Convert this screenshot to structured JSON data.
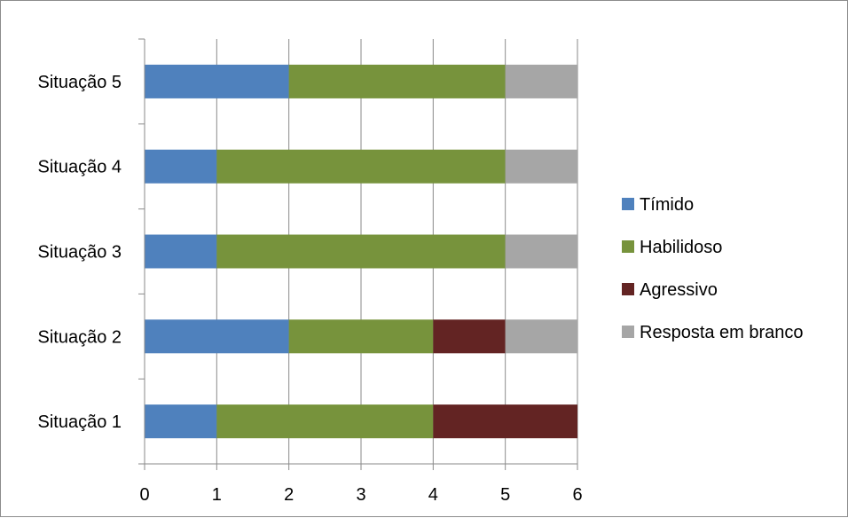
{
  "chart_data": {
    "type": "bar",
    "orientation": "horizontal",
    "stacked": true,
    "categories": [
      "Situação 1",
      "Situação 2",
      "Situação 3",
      "Situação 4",
      "Situação 5"
    ],
    "series": [
      {
        "name": "Tímido",
        "color": "#4f81bd",
        "values": [
          1,
          2,
          1,
          1,
          2
        ]
      },
      {
        "name": "Habilidoso",
        "color": "#77933c",
        "values": [
          3,
          2,
          4,
          4,
          3
        ]
      },
      {
        "name": "Agressivo",
        "color": "#632423",
        "values": [
          2,
          1,
          0,
          0,
          0
        ]
      },
      {
        "name": "Resposta em branco",
        "color": "#a6a6a6",
        "values": [
          0,
          1,
          1,
          1,
          1
        ]
      }
    ],
    "xlim": [
      0,
      6
    ],
    "xticks": [
      "0",
      "1",
      "2",
      "3",
      "4",
      "5",
      "6"
    ],
    "grid": true,
    "legend_position": "right",
    "title": "",
    "xlabel": "",
    "ylabel": ""
  }
}
